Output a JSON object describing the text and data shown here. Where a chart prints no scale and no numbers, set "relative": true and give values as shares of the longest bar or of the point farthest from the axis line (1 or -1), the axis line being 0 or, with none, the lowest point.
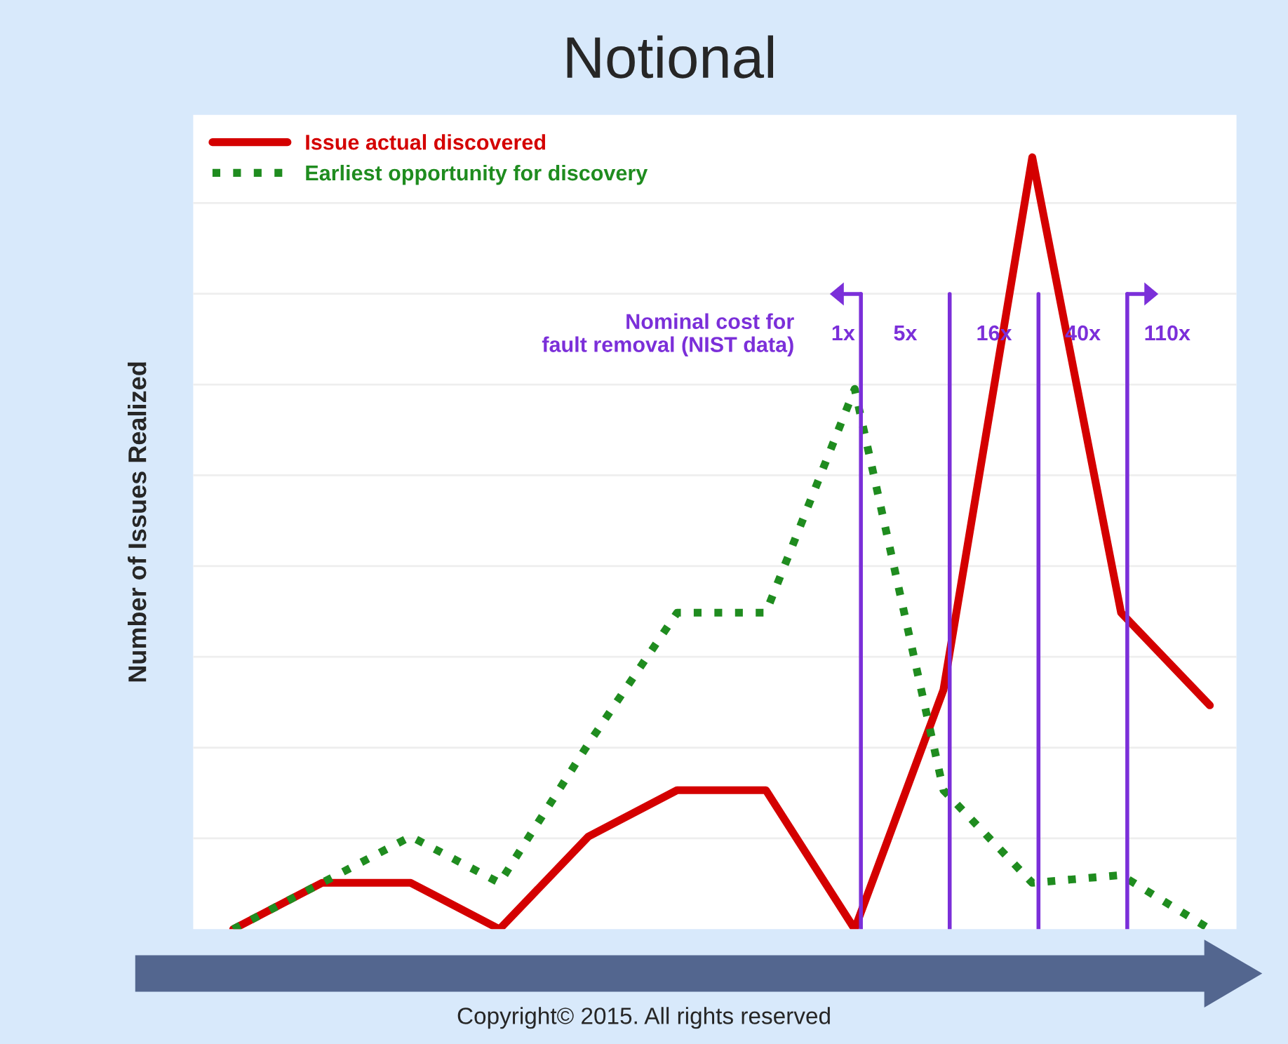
{
  "chart_data": {
    "type": "line",
    "title": "Notional",
    "ylabel": "Number of Issues Realized",
    "relative": true,
    "categories": [
      null,
      null,
      null,
      null,
      null,
      null,
      null,
      null,
      null,
      null,
      null,
      null
    ],
    "series": [
      {
        "name": "Issue actual discovered",
        "color": "#d40000",
        "line_style": "solid",
        "values": [
          0,
          0.06,
          0.06,
          0,
          0.12,
          0.18,
          0.18,
          0,
          0.31,
          1,
          0.41,
          0.29
        ]
      },
      {
        "name": "Earliest opportunity for discovery",
        "color": "#1f8c1f",
        "line_style": "dotted",
        "values": [
          0,
          0.06,
          0.12,
          0.06,
          0.24,
          0.41,
          0.41,
          0.7,
          0.18,
          0.06,
          0.07,
          0
        ]
      }
    ],
    "grid": "y",
    "annotations": [
      "Nominal cost for\nfault removal (NIST data)",
      "1x",
      "5x",
      "16x",
      "40x",
      "110x",
      "Copyright© 2015. All rights reserved"
    ],
    "legend": "top left"
  }
}
